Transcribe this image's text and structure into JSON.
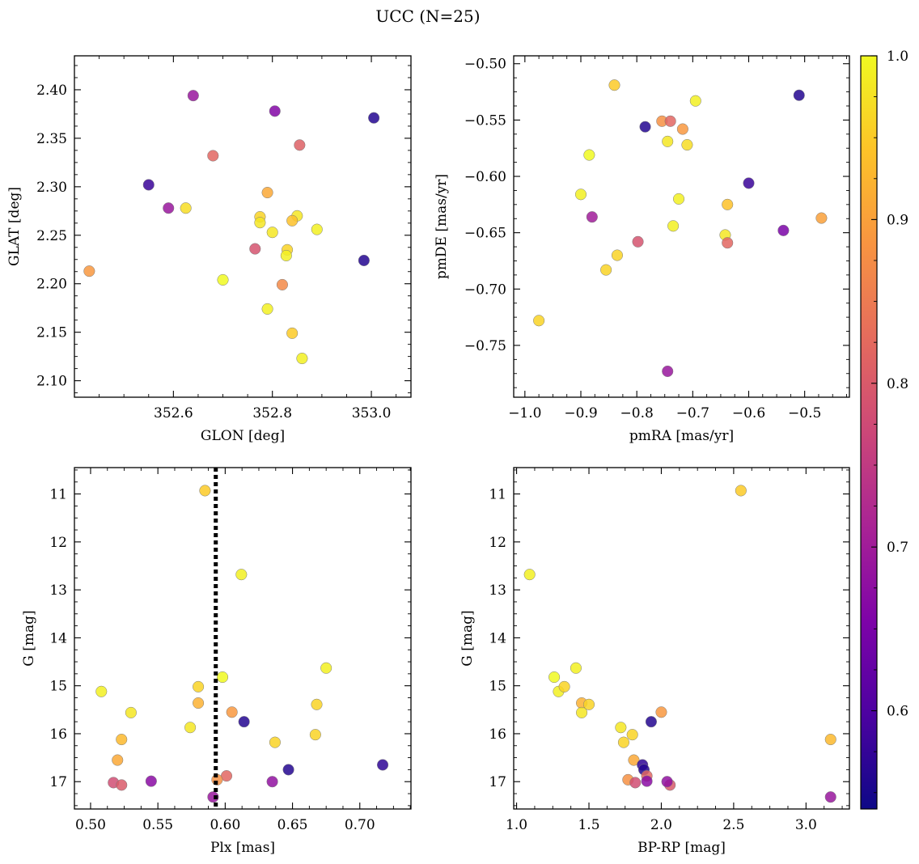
{
  "title": "UCC (N=25)",
  "colorbar": {
    "ticks": [
      0.6,
      0.7,
      0.8,
      0.9,
      1.0
    ],
    "tick_labels": [
      "0.6",
      "0.7",
      "0.8",
      "0.9",
      "1.0"
    ],
    "range": [
      0.54,
      1.0
    ],
    "colormap": "plasma"
  },
  "chart_data": [
    {
      "type": "scatter",
      "xlabel": "GLON [deg]",
      "ylabel": "GLAT [deg]",
      "xlim": [
        352.4,
        353.08
      ],
      "ylim": [
        2.083,
        2.435
      ],
      "xticks": [
        352.6,
        352.8,
        353.0
      ],
      "xtick_labels": [
        "352.6",
        "352.8",
        "353.0"
      ],
      "yticks": [
        2.1,
        2.15,
        2.2,
        2.25,
        2.3,
        2.35,
        2.4
      ],
      "ytick_labels": [
        "2.10",
        "2.15",
        "2.20",
        "2.25",
        "2.30",
        "2.35",
        "2.40"
      ],
      "points": [
        {
          "x": 352.64,
          "y": 2.394,
          "c": 0.69
        },
        {
          "x": 352.805,
          "y": 2.378,
          "c": 0.66
        },
        {
          "x": 353.005,
          "y": 2.371,
          "c": 0.56
        },
        {
          "x": 352.855,
          "y": 2.343,
          "c": 0.81
        },
        {
          "x": 352.68,
          "y": 2.332,
          "c": 0.82
        },
        {
          "x": 352.55,
          "y": 2.302,
          "c": 0.58
        },
        {
          "x": 352.79,
          "y": 2.294,
          "c": 0.91
        },
        {
          "x": 352.59,
          "y": 2.278,
          "c": 0.69
        },
        {
          "x": 352.625,
          "y": 2.278,
          "c": 0.97
        },
        {
          "x": 352.775,
          "y": 2.269,
          "c": 0.96
        },
        {
          "x": 352.85,
          "y": 2.27,
          "c": 0.98
        },
        {
          "x": 352.775,
          "y": 2.263,
          "c": 0.98
        },
        {
          "x": 352.84,
          "y": 2.265,
          "c": 0.94
        },
        {
          "x": 352.89,
          "y": 2.256,
          "c": 0.99
        },
        {
          "x": 352.8,
          "y": 2.253,
          "c": 0.98
        },
        {
          "x": 352.83,
          "y": 2.235,
          "c": 0.96
        },
        {
          "x": 352.765,
          "y": 2.236,
          "c": 0.79
        },
        {
          "x": 352.828,
          "y": 2.229,
          "c": 0.99
        },
        {
          "x": 352.985,
          "y": 2.224,
          "c": 0.56
        },
        {
          "x": 352.43,
          "y": 2.213,
          "c": 0.89
        },
        {
          "x": 352.7,
          "y": 2.204,
          "c": 1.0
        },
        {
          "x": 352.82,
          "y": 2.199,
          "c": 0.87
        },
        {
          "x": 352.79,
          "y": 2.174,
          "c": 0.99
        },
        {
          "x": 352.84,
          "y": 2.149,
          "c": 0.95
        },
        {
          "x": 352.86,
          "y": 2.123,
          "c": 0.99
        }
      ]
    },
    {
      "type": "scatter",
      "xlabel": "pmRA [mas/yr]",
      "ylabel": "pmDE [mas/yr]",
      "xlim": [
        -1.02,
        -0.42
      ],
      "ylim": [
        -0.796,
        -0.493
      ],
      "xticks": [
        -1.0,
        -0.9,
        -0.8,
        -0.7,
        -0.6,
        -0.5
      ],
      "xtick_labels": [
        "−1.0",
        "−0.9",
        "−0.8",
        "−0.7",
        "−0.6",
        "−0.5"
      ],
      "yticks": [
        -0.75,
        -0.7,
        -0.65,
        -0.6,
        -0.55,
        -0.5
      ],
      "ytick_labels": [
        "−0.75",
        "−0.70",
        "−0.65",
        "−0.60",
        "−0.55",
        "−0.50"
      ],
      "points": [
        {
          "x": -0.84,
          "y": -0.519,
          "c": 0.95
        },
        {
          "x": -0.51,
          "y": -0.528,
          "c": 0.56
        },
        {
          "x": -0.695,
          "y": -0.533,
          "c": 0.99
        },
        {
          "x": -0.755,
          "y": -0.551,
          "c": 0.88
        },
        {
          "x": -0.74,
          "y": -0.551,
          "c": 0.82
        },
        {
          "x": -0.785,
          "y": -0.556,
          "c": 0.56
        },
        {
          "x": -0.718,
          "y": -0.558,
          "c": 0.89
        },
        {
          "x": -0.745,
          "y": -0.569,
          "c": 0.98
        },
        {
          "x": -0.71,
          "y": -0.572,
          "c": 0.97
        },
        {
          "x": -0.885,
          "y": -0.581,
          "c": 1.0
        },
        {
          "x": -0.6,
          "y": -0.606,
          "c": 0.58
        },
        {
          "x": -0.9,
          "y": -0.616,
          "c": 0.99
        },
        {
          "x": -0.725,
          "y": -0.62,
          "c": 0.99
        },
        {
          "x": -0.638,
          "y": -0.625,
          "c": 0.94
        },
        {
          "x": -0.88,
          "y": -0.636,
          "c": 0.7
        },
        {
          "x": -0.47,
          "y": -0.637,
          "c": 0.9
        },
        {
          "x": -0.735,
          "y": -0.644,
          "c": 0.99
        },
        {
          "x": -0.538,
          "y": -0.648,
          "c": 0.65
        },
        {
          "x": -0.642,
          "y": -0.652,
          "c": 0.98
        },
        {
          "x": -0.798,
          "y": -0.658,
          "c": 0.79
        },
        {
          "x": -0.638,
          "y": -0.659,
          "c": 0.82
        },
        {
          "x": -0.835,
          "y": -0.67,
          "c": 0.96
        },
        {
          "x": -0.855,
          "y": -0.683,
          "c": 0.96
        },
        {
          "x": -0.975,
          "y": -0.728,
          "c": 0.96
        },
        {
          "x": -0.745,
          "y": -0.773,
          "c": 0.69
        }
      ]
    },
    {
      "type": "scatter",
      "xlabel": "Plx [mas]",
      "ylabel": "G [mag]",
      "xlim": [
        0.488,
        0.738
      ],
      "ylim": [
        17.57,
        10.45
      ],
      "inverted_y": true,
      "xticks": [
        0.5,
        0.55,
        0.6,
        0.65,
        0.7
      ],
      "xtick_labels": [
        "0.50",
        "0.55",
        "0.60",
        "0.65",
        "0.70"
      ],
      "yticks": [
        11,
        12,
        13,
        14,
        15,
        16,
        17
      ],
      "ytick_labels": [
        "11",
        "12",
        "13",
        "14",
        "15",
        "16",
        "17"
      ],
      "vline": {
        "x": 0.593,
        "style": "dotted"
      },
      "points": [
        {
          "x": 0.585,
          "y": 10.93,
          "c": 0.95
        },
        {
          "x": 0.612,
          "y": 12.68,
          "c": 0.99
        },
        {
          "x": 0.675,
          "y": 14.63,
          "c": 0.99
        },
        {
          "x": 0.598,
          "y": 14.82,
          "c": 1.0
        },
        {
          "x": 0.508,
          "y": 15.12,
          "c": 0.99
        },
        {
          "x": 0.58,
          "y": 15.02,
          "c": 0.96
        },
        {
          "x": 0.58,
          "y": 15.36,
          "c": 0.92
        },
        {
          "x": 0.668,
          "y": 15.39,
          "c": 0.96
        },
        {
          "x": 0.53,
          "y": 15.56,
          "c": 0.98
        },
        {
          "x": 0.605,
          "y": 15.55,
          "c": 0.89
        },
        {
          "x": 0.614,
          "y": 15.75,
          "c": 0.56
        },
        {
          "x": 0.574,
          "y": 15.87,
          "c": 0.98
        },
        {
          "x": 0.667,
          "y": 16.02,
          "c": 0.96
        },
        {
          "x": 0.523,
          "y": 16.12,
          "c": 0.93
        },
        {
          "x": 0.637,
          "y": 16.18,
          "c": 0.96
        },
        {
          "x": 0.52,
          "y": 16.55,
          "c": 0.91
        },
        {
          "x": 0.717,
          "y": 16.65,
          "c": 0.57
        },
        {
          "x": 0.647,
          "y": 16.75,
          "c": 0.56
        },
        {
          "x": 0.601,
          "y": 16.88,
          "c": 0.82
        },
        {
          "x": 0.594,
          "y": 16.96,
          "c": 0.88
        },
        {
          "x": 0.517,
          "y": 17.02,
          "c": 0.78
        },
        {
          "x": 0.523,
          "y": 17.07,
          "c": 0.8
        },
        {
          "x": 0.545,
          "y": 16.99,
          "c": 0.67
        },
        {
          "x": 0.635,
          "y": 17.0,
          "c": 0.68
        },
        {
          "x": 0.591,
          "y": 17.32,
          "c": 0.69
        }
      ]
    },
    {
      "type": "scatter",
      "xlabel": "BP-RP [mag]",
      "ylabel": "G [mag]",
      "xlim": [
        0.98,
        3.3
      ],
      "ylim": [
        17.57,
        10.45
      ],
      "inverted_y": true,
      "xticks": [
        1.0,
        1.5,
        2.0,
        2.5,
        3.0
      ],
      "xtick_labels": [
        "1.0",
        "1.5",
        "2.0",
        "2.5",
        "3.0"
      ],
      "yticks": [
        11,
        12,
        13,
        14,
        15,
        16,
        17
      ],
      "ytick_labels": [
        "11",
        "12",
        "13",
        "14",
        "15",
        "16",
        "17"
      ],
      "points": [
        {
          "x": 2.55,
          "y": 10.93,
          "c": 0.95
        },
        {
          "x": 1.09,
          "y": 12.68,
          "c": 0.99
        },
        {
          "x": 1.41,
          "y": 14.63,
          "c": 0.99
        },
        {
          "x": 1.26,
          "y": 14.82,
          "c": 1.0
        },
        {
          "x": 1.29,
          "y": 15.12,
          "c": 0.99
        },
        {
          "x": 1.33,
          "y": 15.02,
          "c": 0.96
        },
        {
          "x": 1.45,
          "y": 15.36,
          "c": 0.92
        },
        {
          "x": 1.5,
          "y": 15.39,
          "c": 0.96
        },
        {
          "x": 1.45,
          "y": 15.56,
          "c": 0.98
        },
        {
          "x": 2.0,
          "y": 15.55,
          "c": 0.89
        },
        {
          "x": 1.93,
          "y": 15.75,
          "c": 0.56
        },
        {
          "x": 1.72,
          "y": 15.87,
          "c": 0.98
        },
        {
          "x": 1.8,
          "y": 16.02,
          "c": 0.96
        },
        {
          "x": 3.17,
          "y": 16.12,
          "c": 0.93
        },
        {
          "x": 1.74,
          "y": 16.18,
          "c": 0.96
        },
        {
          "x": 1.81,
          "y": 16.55,
          "c": 0.91
        },
        {
          "x": 1.87,
          "y": 16.65,
          "c": 0.57
        },
        {
          "x": 1.88,
          "y": 16.75,
          "c": 0.56
        },
        {
          "x": 1.9,
          "y": 16.88,
          "c": 0.82
        },
        {
          "x": 1.77,
          "y": 16.96,
          "c": 0.88
        },
        {
          "x": 1.82,
          "y": 17.02,
          "c": 0.78
        },
        {
          "x": 2.06,
          "y": 17.07,
          "c": 0.8
        },
        {
          "x": 1.9,
          "y": 16.99,
          "c": 0.67
        },
        {
          "x": 2.04,
          "y": 17.0,
          "c": 0.68
        },
        {
          "x": 3.17,
          "y": 17.32,
          "c": 0.69
        }
      ]
    }
  ]
}
